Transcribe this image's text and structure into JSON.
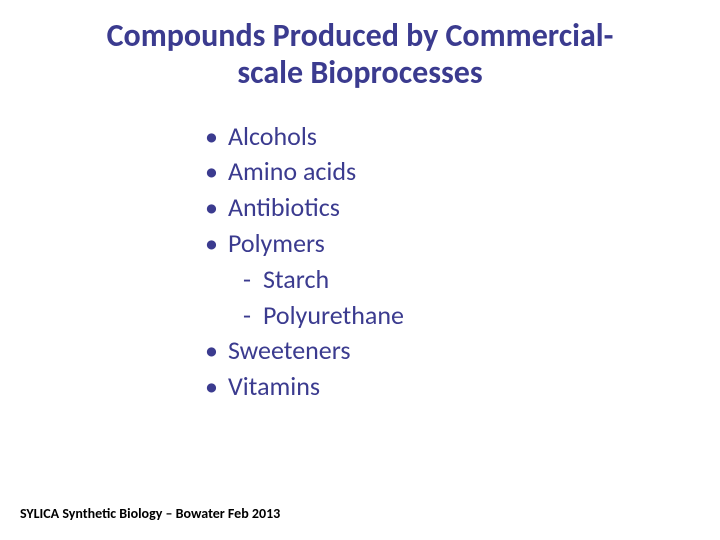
{
  "title": {
    "line1": "Compounds Produced by Commercial-",
    "line2": "scale Bioprocesses",
    "color": "#3b3b8f",
    "fontsize": 32
  },
  "bullets": {
    "mark": "•",
    "mark_color": "#3b3b8f",
    "text_color": "#3b3b8f",
    "fontsize": 26,
    "items": [
      {
        "label": "Alcohols"
      },
      {
        "label": "Amino acids"
      },
      {
        "label": "Antibiotics"
      },
      {
        "label": "Polymers"
      },
      {
        "label": "Sweeteners"
      },
      {
        "label": "Vitamins"
      }
    ],
    "sub_mark": "-",
    "sub_after_index": 3,
    "subs": [
      {
        "label": "Starch"
      },
      {
        "label": "Polyurethane"
      }
    ]
  },
  "footer": {
    "text": "SYLICA Synthetic Biology – Bowater Feb 2013",
    "color": "#000000",
    "fontsize": 14
  }
}
